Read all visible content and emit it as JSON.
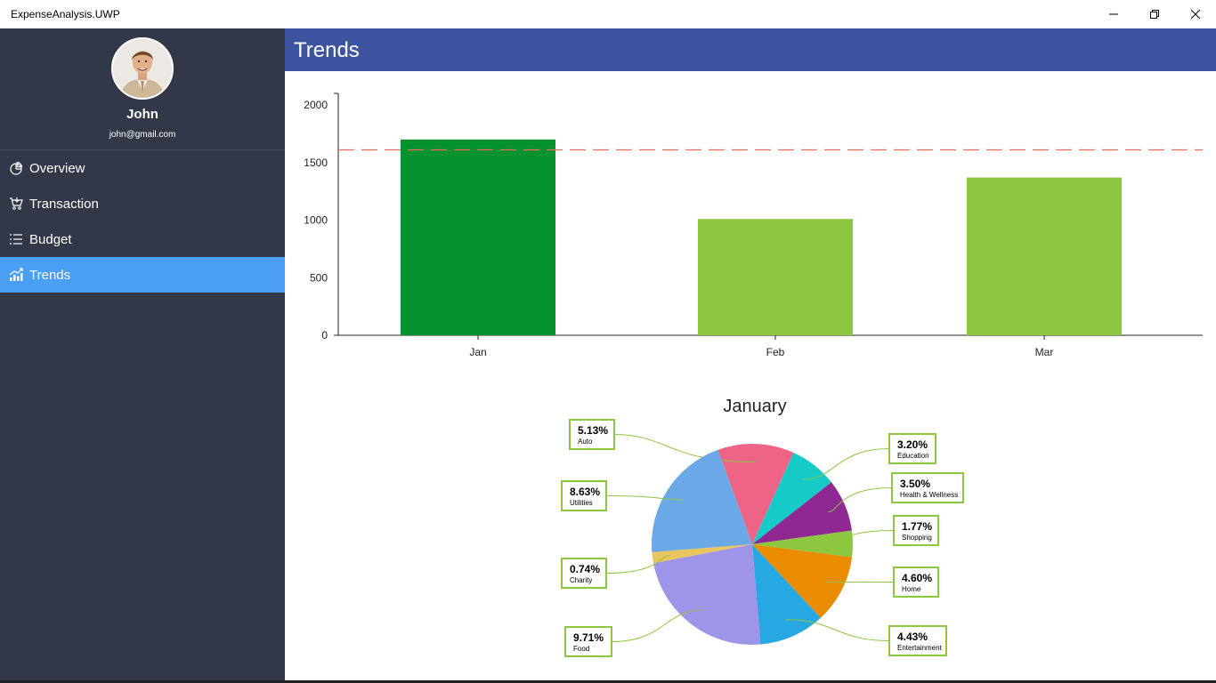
{
  "window": {
    "title": "ExpenseAnalysis.UWP"
  },
  "user": {
    "name": "John",
    "email": "john@gmail.com"
  },
  "nav": [
    {
      "label": "Overview",
      "icon": "pie-chart-icon"
    },
    {
      "label": "Transaction",
      "icon": "cart-icon"
    },
    {
      "label": "Budget",
      "icon": "list-icon"
    },
    {
      "label": "Trends",
      "icon": "trend-chart-icon"
    }
  ],
  "header": {
    "title": "Trends"
  },
  "colors": {
    "sidebar": "#323847",
    "active": "#4a9ff5",
    "header": "#3f54a0",
    "bar_over": "#05922f",
    "bar_under": "#8dc63f",
    "threshold": "#f26b5b"
  },
  "chart_data": [
    {
      "type": "bar",
      "categories": [
        "Jan",
        "Feb",
        "Mar"
      ],
      "values": [
        1700,
        1010,
        1370
      ],
      "yticks": [
        "2000",
        "1500",
        "1000",
        "500",
        "0"
      ],
      "ylim": [
        0,
        2000
      ],
      "threshold": 1610,
      "xlabel": "",
      "ylabel": "",
      "title": ""
    },
    {
      "type": "pie",
      "title": "January",
      "slices": [
        {
          "label": "Auto",
          "percent": "5.13%",
          "value": 5.13,
          "color": "#ee6487"
        },
        {
          "label": "Education",
          "percent": "3.20%",
          "value": 3.2,
          "color": "#16cbc7"
        },
        {
          "label": "Health & Wellness",
          "percent": "3.50%",
          "value": 3.5,
          "color": "#8f2892"
        },
        {
          "label": "Shopping",
          "percent": "1.77%",
          "value": 1.77,
          "color": "#8dc63f"
        },
        {
          "label": "Home",
          "percent": "4.60%",
          "value": 4.6,
          "color": "#ea8c00"
        },
        {
          "label": "Entertainment",
          "percent": "4.43%",
          "value": 4.43,
          "color": "#28a8e2"
        },
        {
          "label": "Food",
          "percent": "9.71%",
          "value": 9.71,
          "color": "#9f95e8"
        },
        {
          "label": "Charity",
          "percent": "0.74%",
          "value": 0.74,
          "color": "#eac45c"
        },
        {
          "label": "Utilities",
          "percent": "8.63%",
          "value": 8.63,
          "color": "#6aa8e8"
        }
      ]
    }
  ]
}
